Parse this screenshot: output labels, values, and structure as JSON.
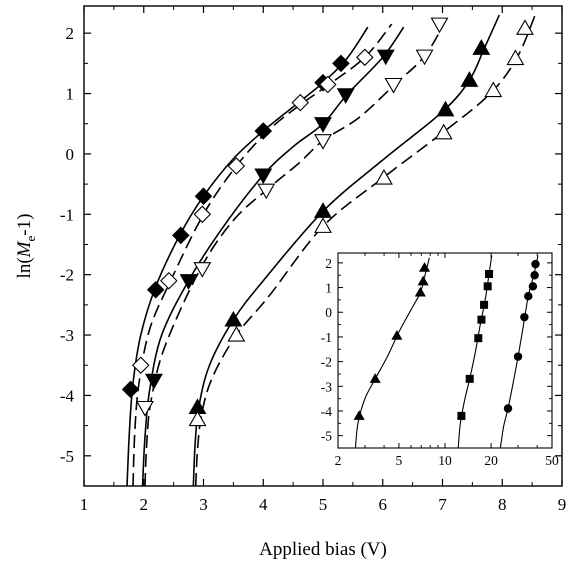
{
  "chart_data": [
    {
      "type": "scatter",
      "xlabel": "Applied bias (V)",
      "ylabel_parts": [
        "ln(",
        "M",
        "e",
        "-1)"
      ],
      "xlim": [
        1,
        9
      ],
      "ylim": [
        -5.5,
        2.45
      ],
      "xticks": [
        "1",
        "2",
        "3",
        "4",
        "5",
        "6",
        "7",
        "8",
        "9"
      ],
      "yticks": [
        "-5",
        "-4",
        "-3",
        "-2",
        "-1",
        "0",
        "1",
        "2"
      ],
      "grid": false,
      "series": [
        {
          "marker": "diamond",
          "filled": true,
          "line": "solid",
          "points": [
            [
              1.78,
              -3.9
            ],
            [
              2.2,
              -2.25
            ],
            [
              2.62,
              -1.35
            ],
            [
              3.0,
              -0.7
            ],
            [
              4.0,
              0.38
            ],
            [
              5.0,
              1.18
            ],
            [
              5.3,
              1.5
            ]
          ],
          "curve": [
            [
              1.72,
              -5.5
            ],
            [
              1.76,
              -4.6
            ],
            [
              1.82,
              -3.8
            ],
            [
              1.95,
              -3.0
            ],
            [
              2.2,
              -2.2
            ],
            [
              2.6,
              -1.35
            ],
            [
              3.0,
              -0.7
            ],
            [
              3.5,
              -0.08
            ],
            [
              4.0,
              0.38
            ],
            [
              4.5,
              0.78
            ],
            [
              5.0,
              1.18
            ],
            [
              5.4,
              1.58
            ],
            [
              5.75,
              2.1
            ]
          ]
        },
        {
          "marker": "diamond",
          "filled": false,
          "line": "dashed",
          "points": [
            [
              1.95,
              -3.5
            ],
            [
              2.42,
              -2.1
            ],
            [
              2.98,
              -1.0
            ],
            [
              3.55,
              -0.2
            ],
            [
              4.62,
              0.85
            ],
            [
              5.08,
              1.15
            ],
            [
              5.7,
              1.6
            ]
          ],
          "curve": [
            [
              1.82,
              -5.5
            ],
            [
              1.85,
              -4.6
            ],
            [
              1.92,
              -3.8
            ],
            [
              2.1,
              -2.9
            ],
            [
              2.45,
              -2.1
            ],
            [
              3.0,
              -1.0
            ],
            [
              3.55,
              -0.2
            ],
            [
              4.1,
              0.4
            ],
            [
              4.6,
              0.8
            ],
            [
              5.1,
              1.15
            ],
            [
              5.7,
              1.6
            ],
            [
              6.15,
              2.15
            ]
          ]
        },
        {
          "marker": "triangle-down",
          "filled": true,
          "line": "solid",
          "points": [
            [
              2.17,
              -3.75
            ],
            [
              2.75,
              -2.1
            ],
            [
              4.0,
              -0.35
            ],
            [
              5.0,
              0.5
            ],
            [
              5.38,
              0.98
            ],
            [
              6.05,
              1.62
            ]
          ],
          "curve": [
            [
              1.98,
              -5.5
            ],
            [
              2.02,
              -4.7
            ],
            [
              2.1,
              -3.9
            ],
            [
              2.3,
              -3.0
            ],
            [
              2.75,
              -2.1
            ],
            [
              3.3,
              -1.25
            ],
            [
              4.0,
              -0.35
            ],
            [
              4.5,
              0.12
            ],
            [
              5.0,
              0.5
            ],
            [
              5.4,
              0.98
            ],
            [
              6.0,
              1.6
            ],
            [
              6.35,
              2.1
            ]
          ]
        },
        {
          "marker": "triangle-down",
          "filled": false,
          "line": "dashed",
          "points": [
            [
              2.02,
              -4.2
            ],
            [
              2.98,
              -1.9
            ],
            [
              4.05,
              -0.6
            ],
            [
              5.0,
              0.22
            ],
            [
              6.18,
              1.15
            ],
            [
              6.7,
              1.62
            ],
            [
              6.95,
              2.15
            ]
          ],
          "curve": [
            [
              2.02,
              -5.5
            ],
            [
              2.05,
              -4.8
            ],
            [
              2.12,
              -4.1
            ],
            [
              2.35,
              -3.2
            ],
            [
              2.95,
              -1.9
            ],
            [
              3.5,
              -1.1
            ],
            [
              4.05,
              -0.6
            ],
            [
              4.6,
              -0.15
            ],
            [
              5.0,
              0.22
            ],
            [
              5.6,
              0.6
            ],
            [
              6.2,
              1.15
            ],
            [
              6.7,
              1.62
            ],
            [
              7.05,
              2.2
            ]
          ]
        },
        {
          "marker": "triangle-up",
          "filled": true,
          "line": "solid",
          "points": [
            [
              2.9,
              -4.2
            ],
            [
              3.5,
              -2.75
            ],
            [
              5.0,
              -0.95
            ],
            [
              7.05,
              0.73
            ],
            [
              7.45,
              1.22
            ],
            [
              7.65,
              1.75
            ]
          ],
          "curve": [
            [
              2.83,
              -5.5
            ],
            [
              2.86,
              -4.8
            ],
            [
              2.92,
              -4.2
            ],
            [
              3.1,
              -3.5
            ],
            [
              3.5,
              -2.75
            ],
            [
              4.0,
              -2.1
            ],
            [
              5.0,
              -0.95
            ],
            [
              6.0,
              -0.1
            ],
            [
              7.0,
              0.7
            ],
            [
              7.45,
              1.22
            ],
            [
              7.7,
              1.75
            ],
            [
              7.95,
              2.3
            ]
          ]
        },
        {
          "marker": "triangle-up",
          "filled": false,
          "line": "dashed",
          "points": [
            [
              2.9,
              -4.4
            ],
            [
              3.55,
              -3.0
            ],
            [
              5.0,
              -1.2
            ],
            [
              6.02,
              -0.4
            ],
            [
              7.02,
              0.35
            ],
            [
              7.85,
              1.05
            ],
            [
              8.22,
              1.58
            ],
            [
              8.38,
              2.08
            ]
          ],
          "curve": [
            [
              2.87,
              -5.5
            ],
            [
              2.9,
              -4.9
            ],
            [
              2.97,
              -4.3
            ],
            [
              3.15,
              -3.7
            ],
            [
              3.55,
              -3.0
            ],
            [
              4.1,
              -2.35
            ],
            [
              5.0,
              -1.2
            ],
            [
              6.0,
              -0.4
            ],
            [
              7.0,
              0.35
            ],
            [
              7.8,
              1.0
            ],
            [
              8.25,
              1.6
            ],
            [
              8.55,
              2.3
            ]
          ]
        }
      ]
    },
    {
      "type": "scatter",
      "xscale": "log",
      "xlim": [
        2,
        50
      ],
      "ylim": [
        -5.5,
        2.4
      ],
      "xticks": [
        "2",
        "5",
        "10",
        "20",
        "50"
      ],
      "yticks": [
        "2",
        "1",
        "0",
        "-1",
        "-2",
        "-3",
        "-4",
        "-5"
      ],
      "grid": false,
      "series": [
        {
          "marker": "triangle-up",
          "filled": true,
          "line": "solid",
          "points": [
            [
              2.75,
              -4.2
            ],
            [
              3.5,
              -2.7
            ],
            [
              4.85,
              -0.95
            ],
            [
              6.9,
              0.8
            ],
            [
              7.2,
              1.25
            ],
            [
              7.35,
              1.8
            ]
          ],
          "curve": [
            [
              2.6,
              -5.5
            ],
            [
              2.7,
              -4.5
            ],
            [
              3.0,
              -3.5
            ],
            [
              3.5,
              -2.7
            ],
            [
              4.2,
              -1.8
            ],
            [
              5.0,
              -0.8
            ],
            [
              6.0,
              0.1
            ],
            [
              6.9,
              0.8
            ],
            [
              7.4,
              1.5
            ],
            [
              7.9,
              2.2
            ]
          ]
        },
        {
          "marker": "square",
          "filled": true,
          "line": "solid",
          "points": [
            [
              12.8,
              -4.2
            ],
            [
              14.5,
              -2.7
            ],
            [
              16.5,
              -1.05
            ],
            [
              17.3,
              -0.3
            ],
            [
              18.0,
              0.3
            ],
            [
              19.0,
              1.05
            ],
            [
              19.4,
              1.55
            ]
          ],
          "curve": [
            [
              12.2,
              -5.5
            ],
            [
              12.6,
              -4.5
            ],
            [
              13.5,
              -3.5
            ],
            [
              14.5,
              -2.7
            ],
            [
              15.8,
              -1.6
            ],
            [
              17.0,
              -0.5
            ],
            [
              18.3,
              0.5
            ],
            [
              19.4,
              1.55
            ],
            [
              20.2,
              2.3
            ]
          ]
        },
        {
          "marker": "circle",
          "filled": true,
          "line": "solid",
          "points": [
            [
              25.8,
              -3.9
            ],
            [
              30.0,
              -1.8
            ],
            [
              33.0,
              -0.2
            ],
            [
              35.0,
              0.65
            ],
            [
              37.5,
              1.05
            ],
            [
              38.5,
              1.5
            ],
            [
              39.0,
              1.95
            ]
          ],
          "curve": [
            [
              23.0,
              -5.5
            ],
            [
              24.2,
              -4.6
            ],
            [
              25.8,
              -3.9
            ],
            [
              28.0,
              -2.8
            ],
            [
              30.0,
              -1.8
            ],
            [
              32.0,
              -0.8
            ],
            [
              35.0,
              0.65
            ],
            [
              38.0,
              1.5
            ],
            [
              40.5,
              2.3
            ]
          ]
        }
      ]
    }
  ]
}
